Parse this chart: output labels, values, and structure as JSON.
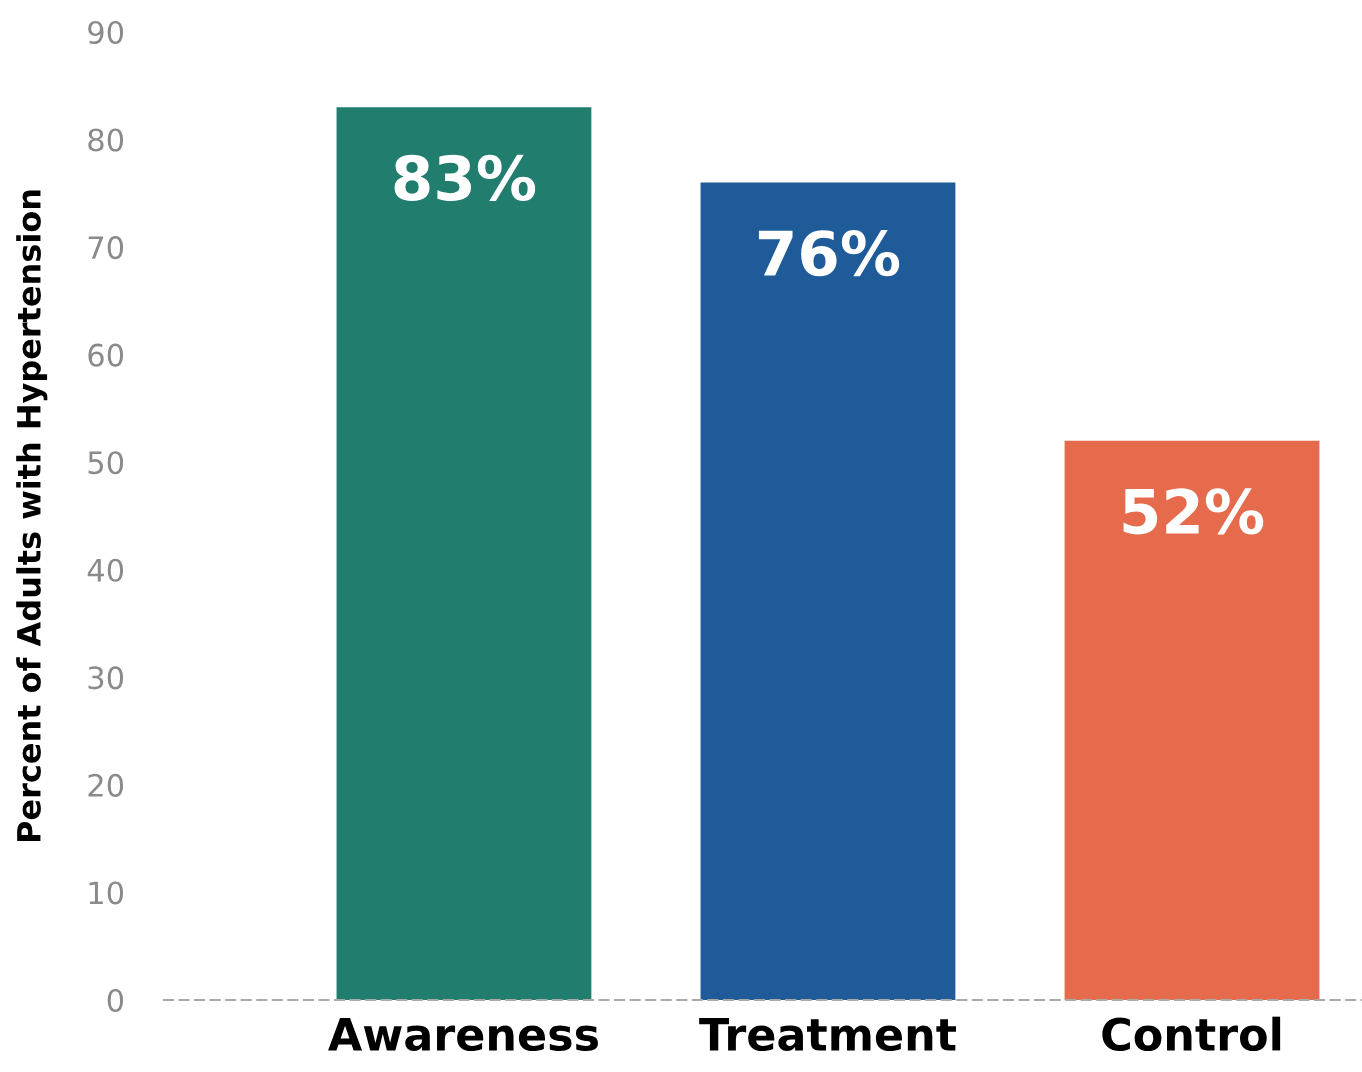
{
  "chart_data": {
    "type": "bar",
    "ylabel": "Percent of Adults with Hypertension",
    "categories": [
      "Awareness",
      "Treatment",
      "Control"
    ],
    "values": [
      83,
      76,
      52
    ],
    "colors": [
      "#217e6f",
      "#1e5b98",
      "#e56b4c"
    ],
    "value_labels": [
      "83%",
      "76%",
      "52%"
    ],
    "ylim": [
      0,
      90
    ],
    "yticks": [
      0,
      10,
      20,
      30,
      40,
      50,
      60,
      70,
      80,
      90
    ],
    "grid": false,
    "legend": false
  }
}
